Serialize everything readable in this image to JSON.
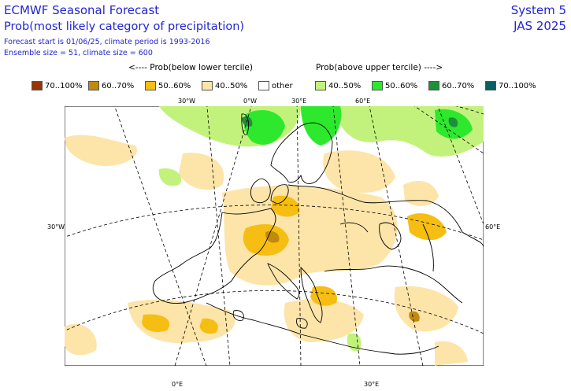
{
  "header": {
    "title": "ECMWF Seasonal Forecast",
    "subtitle": "Prob(most likely category of precipitation)",
    "meta_line1": "Forecast start is 01/06/25, climate period is 1993-2016",
    "meta_line2": "Ensemble size = 51, climate size = 600",
    "system": "System 5",
    "season": "JAS 2025"
  },
  "legend": {
    "below_header": "<---- Prob(below lower tercile)",
    "above_header": "Prob(above upper tercile) ---->",
    "items": [
      {
        "label": "70..100%",
        "color": "#993404"
      },
      {
        "label": "60..70%",
        "color": "#c08a0c"
      },
      {
        "label": "50..60%",
        "color": "#f6be12"
      },
      {
        "label": "40..50%",
        "color": "#fde4a8"
      },
      {
        "label": "other",
        "color": "#ffffff"
      },
      {
        "label": "40..50%",
        "color": "#c3f27c"
      },
      {
        "label": "50..60%",
        "color": "#2ee82e"
      },
      {
        "label": "60..70%",
        "color": "#1f8f3a"
      },
      {
        "label": "70..100%",
        "color": "#0b5e62"
      }
    ]
  },
  "map": {
    "region": "Europe",
    "grid_labels": {
      "lon_top": [
        "30°W",
        "0°W",
        "30°E",
        "60°E"
      ],
      "lat_left": "30°W",
      "lat_right": "60°E",
      "lon_bottom": [
        "0°E",
        "30°E"
      ]
    }
  }
}
